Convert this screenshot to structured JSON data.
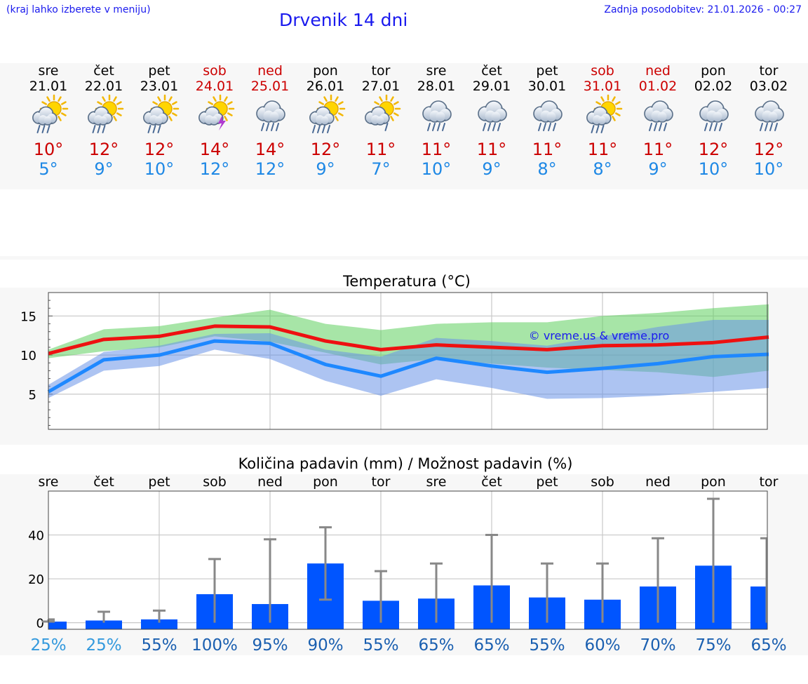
{
  "header": {
    "hint": "(kraj lahko izberete v meniju)",
    "title": "Drvenik 14 dni",
    "updated": "Zadnja posodobitev: 21.01.2026 - 00:27"
  },
  "colors": {
    "weekday": "#000000",
    "weekend": "#cc0000",
    "tmax": "#cc0000",
    "tmin": "#1e88e5",
    "link": "#1a1aee",
    "bar": "#0055ff",
    "whisker": "#888888",
    "prob_low": "#3399dd",
    "prob_high": "#1a5fb0"
  },
  "forecast": [
    {
      "day": "sre",
      "date": "21.01",
      "icon": "sun-cloud-rain-icon",
      "tmax": "10°",
      "tmin": "5°",
      "weekend": false
    },
    {
      "day": "čet",
      "date": "22.01",
      "icon": "sun-cloud-rain-icon",
      "tmax": "12°",
      "tmin": "9°",
      "weekend": false
    },
    {
      "day": "pet",
      "date": "23.01",
      "icon": "sun-cloud-rain-icon",
      "tmax": "12°",
      "tmin": "10°",
      "weekend": false
    },
    {
      "day": "sob",
      "date": "24.01",
      "icon": "sun-cloud-thunder-icon",
      "tmax": "14°",
      "tmin": "12°",
      "weekend": true
    },
    {
      "day": "ned",
      "date": "25.01",
      "icon": "cloud-rain-icon",
      "tmax": "14°",
      "tmin": "12°",
      "weekend": true
    },
    {
      "day": "pon",
      "date": "26.01",
      "icon": "sun-cloud-heavy-rain-icon",
      "tmax": "12°",
      "tmin": "9°",
      "weekend": false
    },
    {
      "day": "tor",
      "date": "27.01",
      "icon": "sun-cloud-light-rain-icon",
      "tmax": "11°",
      "tmin": "7°",
      "weekend": false
    },
    {
      "day": "sre",
      "date": "28.01",
      "icon": "cloud-rain-icon",
      "tmax": "11°",
      "tmin": "10°",
      "weekend": false
    },
    {
      "day": "čet",
      "date": "29.01",
      "icon": "cloud-rain-icon",
      "tmax": "11°",
      "tmin": "9°",
      "weekend": false
    },
    {
      "day": "pet",
      "date": "30.01",
      "icon": "cloud-rain-icon",
      "tmax": "11°",
      "tmin": "8°",
      "weekend": false
    },
    {
      "day": "sob",
      "date": "31.01",
      "icon": "sun-cloud-rain-icon",
      "tmax": "11°",
      "tmin": "8°",
      "weekend": true
    },
    {
      "day": "ned",
      "date": "01.02",
      "icon": "cloud-rain-icon",
      "tmax": "11°",
      "tmin": "9°",
      "weekend": true
    },
    {
      "day": "pon",
      "date": "02.02",
      "icon": "cloud-rain-icon",
      "tmax": "12°",
      "tmin": "10°",
      "weekend": false
    },
    {
      "day": "tor",
      "date": "03.02",
      "icon": "cloud-rain-icon",
      "tmax": "12°",
      "tmin": "10°",
      "weekend": false
    }
  ],
  "chart_data": [
    {
      "type": "line",
      "title": "Temperatura (°C)",
      "watermark": "© vreme.us & vreme.pro",
      "ylim": [
        0.5,
        18
      ],
      "yticks": [
        5,
        10,
        15
      ],
      "yticklabels": [
        "5",
        "10",
        "15"
      ],
      "x": [
        0,
        1,
        2,
        3,
        4,
        5,
        6,
        7,
        8,
        9,
        10,
        11,
        12,
        13
      ],
      "series": [
        {
          "name": "tmax",
          "values": [
            10.2,
            12.0,
            12.4,
            13.7,
            13.6,
            11.8,
            10.7,
            11.3,
            11.0,
            10.7,
            11.2,
            11.3,
            11.6,
            12.3
          ]
        },
        {
          "name": "tmin",
          "values": [
            5.3,
            9.4,
            10.0,
            11.8,
            11.5,
            8.8,
            7.3,
            9.6,
            8.6,
            7.8,
            8.3,
            8.9,
            9.8,
            10.1
          ]
        },
        {
          "name": "tmax_range_low",
          "values": [
            9.6,
            10.5,
            11.0,
            12.4,
            11.7,
            10.3,
            8.8,
            9.5,
            8.9,
            8.4,
            8.1,
            7.8,
            7.2,
            8.0
          ]
        },
        {
          "name": "tmax_range_high",
          "values": [
            10.7,
            13.3,
            13.7,
            14.8,
            15.8,
            14.0,
            13.2,
            14.0,
            14.2,
            14.2,
            15.0,
            15.4,
            16.0,
            16.5
          ]
        },
        {
          "name": "tmin_range_low",
          "values": [
            4.5,
            8.0,
            8.6,
            10.7,
            9.5,
            6.7,
            4.8,
            6.9,
            5.8,
            4.4,
            4.5,
            4.8,
            5.3,
            5.8
          ]
        },
        {
          "name": "tmin_range_high",
          "values": [
            6.2,
            10.4,
            11.2,
            12.7,
            12.8,
            10.7,
            9.8,
            12.2,
            11.8,
            11.2,
            12.4,
            13.6,
            14.5,
            14.5
          ]
        }
      ],
      "grid": true
    },
    {
      "type": "bar",
      "title": "Količina padavin (mm) / Možnost padavin (%)",
      "categories": [
        "sre",
        "čet",
        "pet",
        "sob",
        "ned",
        "pon",
        "tor",
        "sre",
        "čet",
        "pet",
        "sob",
        "ned",
        "pon",
        "tor"
      ],
      "values": [
        0.5,
        1,
        1.5,
        13,
        8.5,
        27,
        10,
        11,
        17,
        11.5,
        10.5,
        16.5,
        26,
        16.5
      ],
      "error_low": [
        0.5,
        0,
        0,
        0,
        0,
        10.5,
        0,
        0,
        0,
        0,
        0,
        0,
        0,
        0
      ],
      "error_high": [
        1.5,
        5,
        5.5,
        29,
        38,
        43.5,
        23.5,
        27,
        40,
        27,
        27,
        38.5,
        56.5,
        38.5
      ],
      "probability": [
        "25%",
        "25%",
        "55%",
        "100%",
        "95%",
        "90%",
        "55%",
        "65%",
        "65%",
        "55%",
        "60%",
        "70%",
        "75%",
        "65%"
      ],
      "ylim": [
        -3,
        60
      ],
      "yticks": [
        0,
        20,
        40
      ],
      "yticklabels": [
        "0",
        "20",
        "40"
      ],
      "grid": true
    }
  ]
}
